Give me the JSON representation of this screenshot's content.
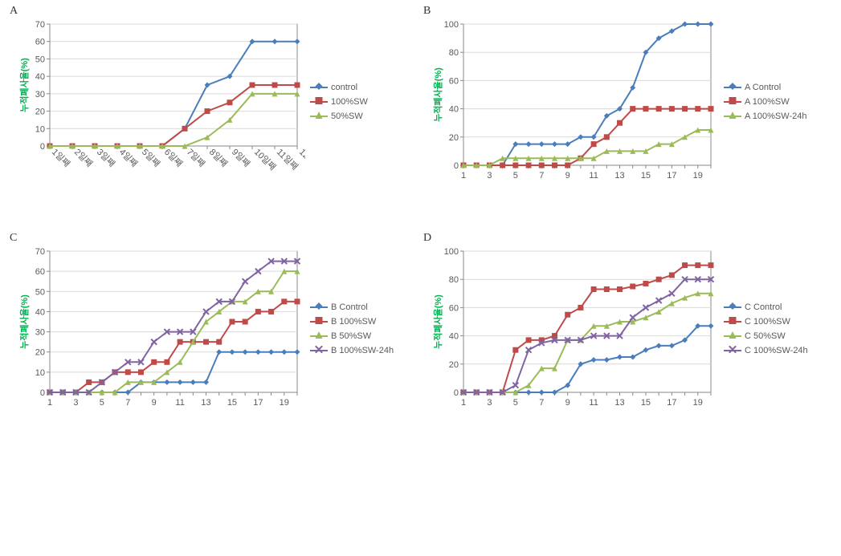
{
  "colors": {
    "blue": "#4a7ebb",
    "red": "#be4b48",
    "green": "#9bbb59",
    "purple": "#8064a2",
    "grid": "#d9d9d9",
    "axis": "#898989",
    "text": "#595959",
    "ytitle": "#00b050",
    "bg": "#ffffff"
  },
  "markers": {
    "blue": "diamond",
    "red": "square",
    "green": "triangle",
    "purple": "x"
  },
  "ylabel": "누적폐사율(%)",
  "panels": {
    "A": {
      "label": "A",
      "ylim": [
        0,
        70
      ],
      "ytick_step": 10,
      "xcategories": [
        "1일째",
        "2일째",
        "3일째",
        "4일째",
        "5일째",
        "6일째",
        "7일째",
        "8일째",
        "9일째",
        "10일째",
        "11일째",
        "12일째"
      ],
      "x_label_rotate": 45,
      "xtick_step": 1,
      "series": [
        {
          "name": "control",
          "color": "blue",
          "data": [
            0,
            0,
            0,
            0,
            0,
            0,
            10,
            35,
            40,
            60,
            60,
            60
          ]
        },
        {
          "name": "100%SW",
          "color": "red",
          "data": [
            0,
            0,
            0,
            0,
            0,
            0,
            10,
            20,
            25,
            35,
            35,
            35
          ]
        },
        {
          "name": "50%SW",
          "color": "green",
          "data": [
            0,
            0,
            0,
            0,
            0,
            0,
            0,
            5,
            15,
            30,
            30,
            30
          ]
        }
      ]
    },
    "B": {
      "label": "B",
      "ylim": [
        0,
        100
      ],
      "ytick_step": 20,
      "xcategories": [
        1,
        2,
        3,
        4,
        5,
        6,
        7,
        8,
        9,
        10,
        11,
        12,
        13,
        14,
        15,
        16,
        17,
        18,
        19,
        20
      ],
      "x_label_rotate": 0,
      "xtick_step": 2,
      "series": [
        {
          "name": "A Control",
          "color": "blue",
          "data": [
            0,
            0,
            0,
            0,
            15,
            15,
            15,
            15,
            15,
            20,
            20,
            35,
            40,
            55,
            80,
            90,
            95,
            100,
            100,
            100
          ]
        },
        {
          "name": "A 100%SW",
          "color": "red",
          "data": [
            0,
            0,
            0,
            0,
            0,
            0,
            0,
            0,
            0,
            5,
            15,
            20,
            30,
            40,
            40,
            40,
            40,
            40,
            40,
            40
          ]
        },
        {
          "name": "A 100%SW-24h",
          "color": "green",
          "data": [
            0,
            0,
            0,
            5,
            5,
            5,
            5,
            5,
            5,
            5,
            5,
            10,
            10,
            10,
            10,
            15,
            15,
            20,
            25,
            25
          ]
        }
      ]
    },
    "C": {
      "label": "C",
      "ylim": [
        0,
        70
      ],
      "ytick_step": 10,
      "xcategories": [
        1,
        2,
        3,
        4,
        5,
        6,
        7,
        8,
        9,
        10,
        11,
        12,
        13,
        14,
        15,
        16,
        17,
        18,
        19,
        20
      ],
      "x_label_rotate": 0,
      "xtick_step": 2,
      "series": [
        {
          "name": "B Control",
          "color": "blue",
          "data": [
            0,
            0,
            0,
            0,
            0,
            0,
            0,
            5,
            5,
            5,
            5,
            5,
            5,
            20,
            20,
            20,
            20,
            20,
            20,
            20
          ]
        },
        {
          "name": "B 100%SW",
          "color": "red",
          "data": [
            0,
            0,
            0,
            5,
            5,
            10,
            10,
            10,
            15,
            15,
            25,
            25,
            25,
            25,
            35,
            35,
            40,
            40,
            45,
            45
          ]
        },
        {
          "name": "B 50%SW",
          "color": "green",
          "data": [
            0,
            0,
            0,
            0,
            0,
            0,
            5,
            5,
            5,
            10,
            15,
            25,
            35,
            40,
            45,
            45,
            50,
            50,
            60,
            60
          ]
        },
        {
          "name": "B 100%SW-24h",
          "color": "purple",
          "data": [
            0,
            0,
            0,
            0,
            5,
            10,
            15,
            15,
            25,
            30,
            30,
            30,
            40,
            45,
            45,
            55,
            60,
            65,
            65,
            65
          ]
        }
      ]
    },
    "D": {
      "label": "D",
      "ylim": [
        0,
        100
      ],
      "ytick_step": 20,
      "xcategories": [
        1,
        2,
        3,
        4,
        5,
        6,
        7,
        8,
        9,
        10,
        11,
        12,
        13,
        14,
        15,
        16,
        17,
        18,
        19,
        20
      ],
      "x_label_rotate": 0,
      "xtick_step": 2,
      "series": [
        {
          "name": "C Control",
          "color": "blue",
          "data": [
            0,
            0,
            0,
            0,
            0,
            0,
            0,
            0,
            5,
            20,
            23,
            23,
            25,
            25,
            30,
            33,
            33,
            37,
            47,
            47
          ]
        },
        {
          "name": "C 100%SW",
          "color": "red",
          "data": [
            0,
            0,
            0,
            0,
            30,
            37,
            37,
            40,
            55,
            60,
            73,
            73,
            73,
            75,
            77,
            80,
            83,
            90,
            90,
            90
          ]
        },
        {
          "name": "C 50%SW",
          "color": "green",
          "data": [
            0,
            0,
            0,
            0,
            0,
            5,
            17,
            17,
            37,
            37,
            47,
            47,
            50,
            50,
            53,
            57,
            63,
            67,
            70,
            70
          ]
        },
        {
          "name": "C 100%SW-24h",
          "color": "purple",
          "data": [
            0,
            0,
            0,
            0,
            5,
            30,
            35,
            37,
            37,
            37,
            40,
            40,
            40,
            53,
            60,
            65,
            70,
            80,
            80,
            80
          ]
        }
      ]
    }
  }
}
